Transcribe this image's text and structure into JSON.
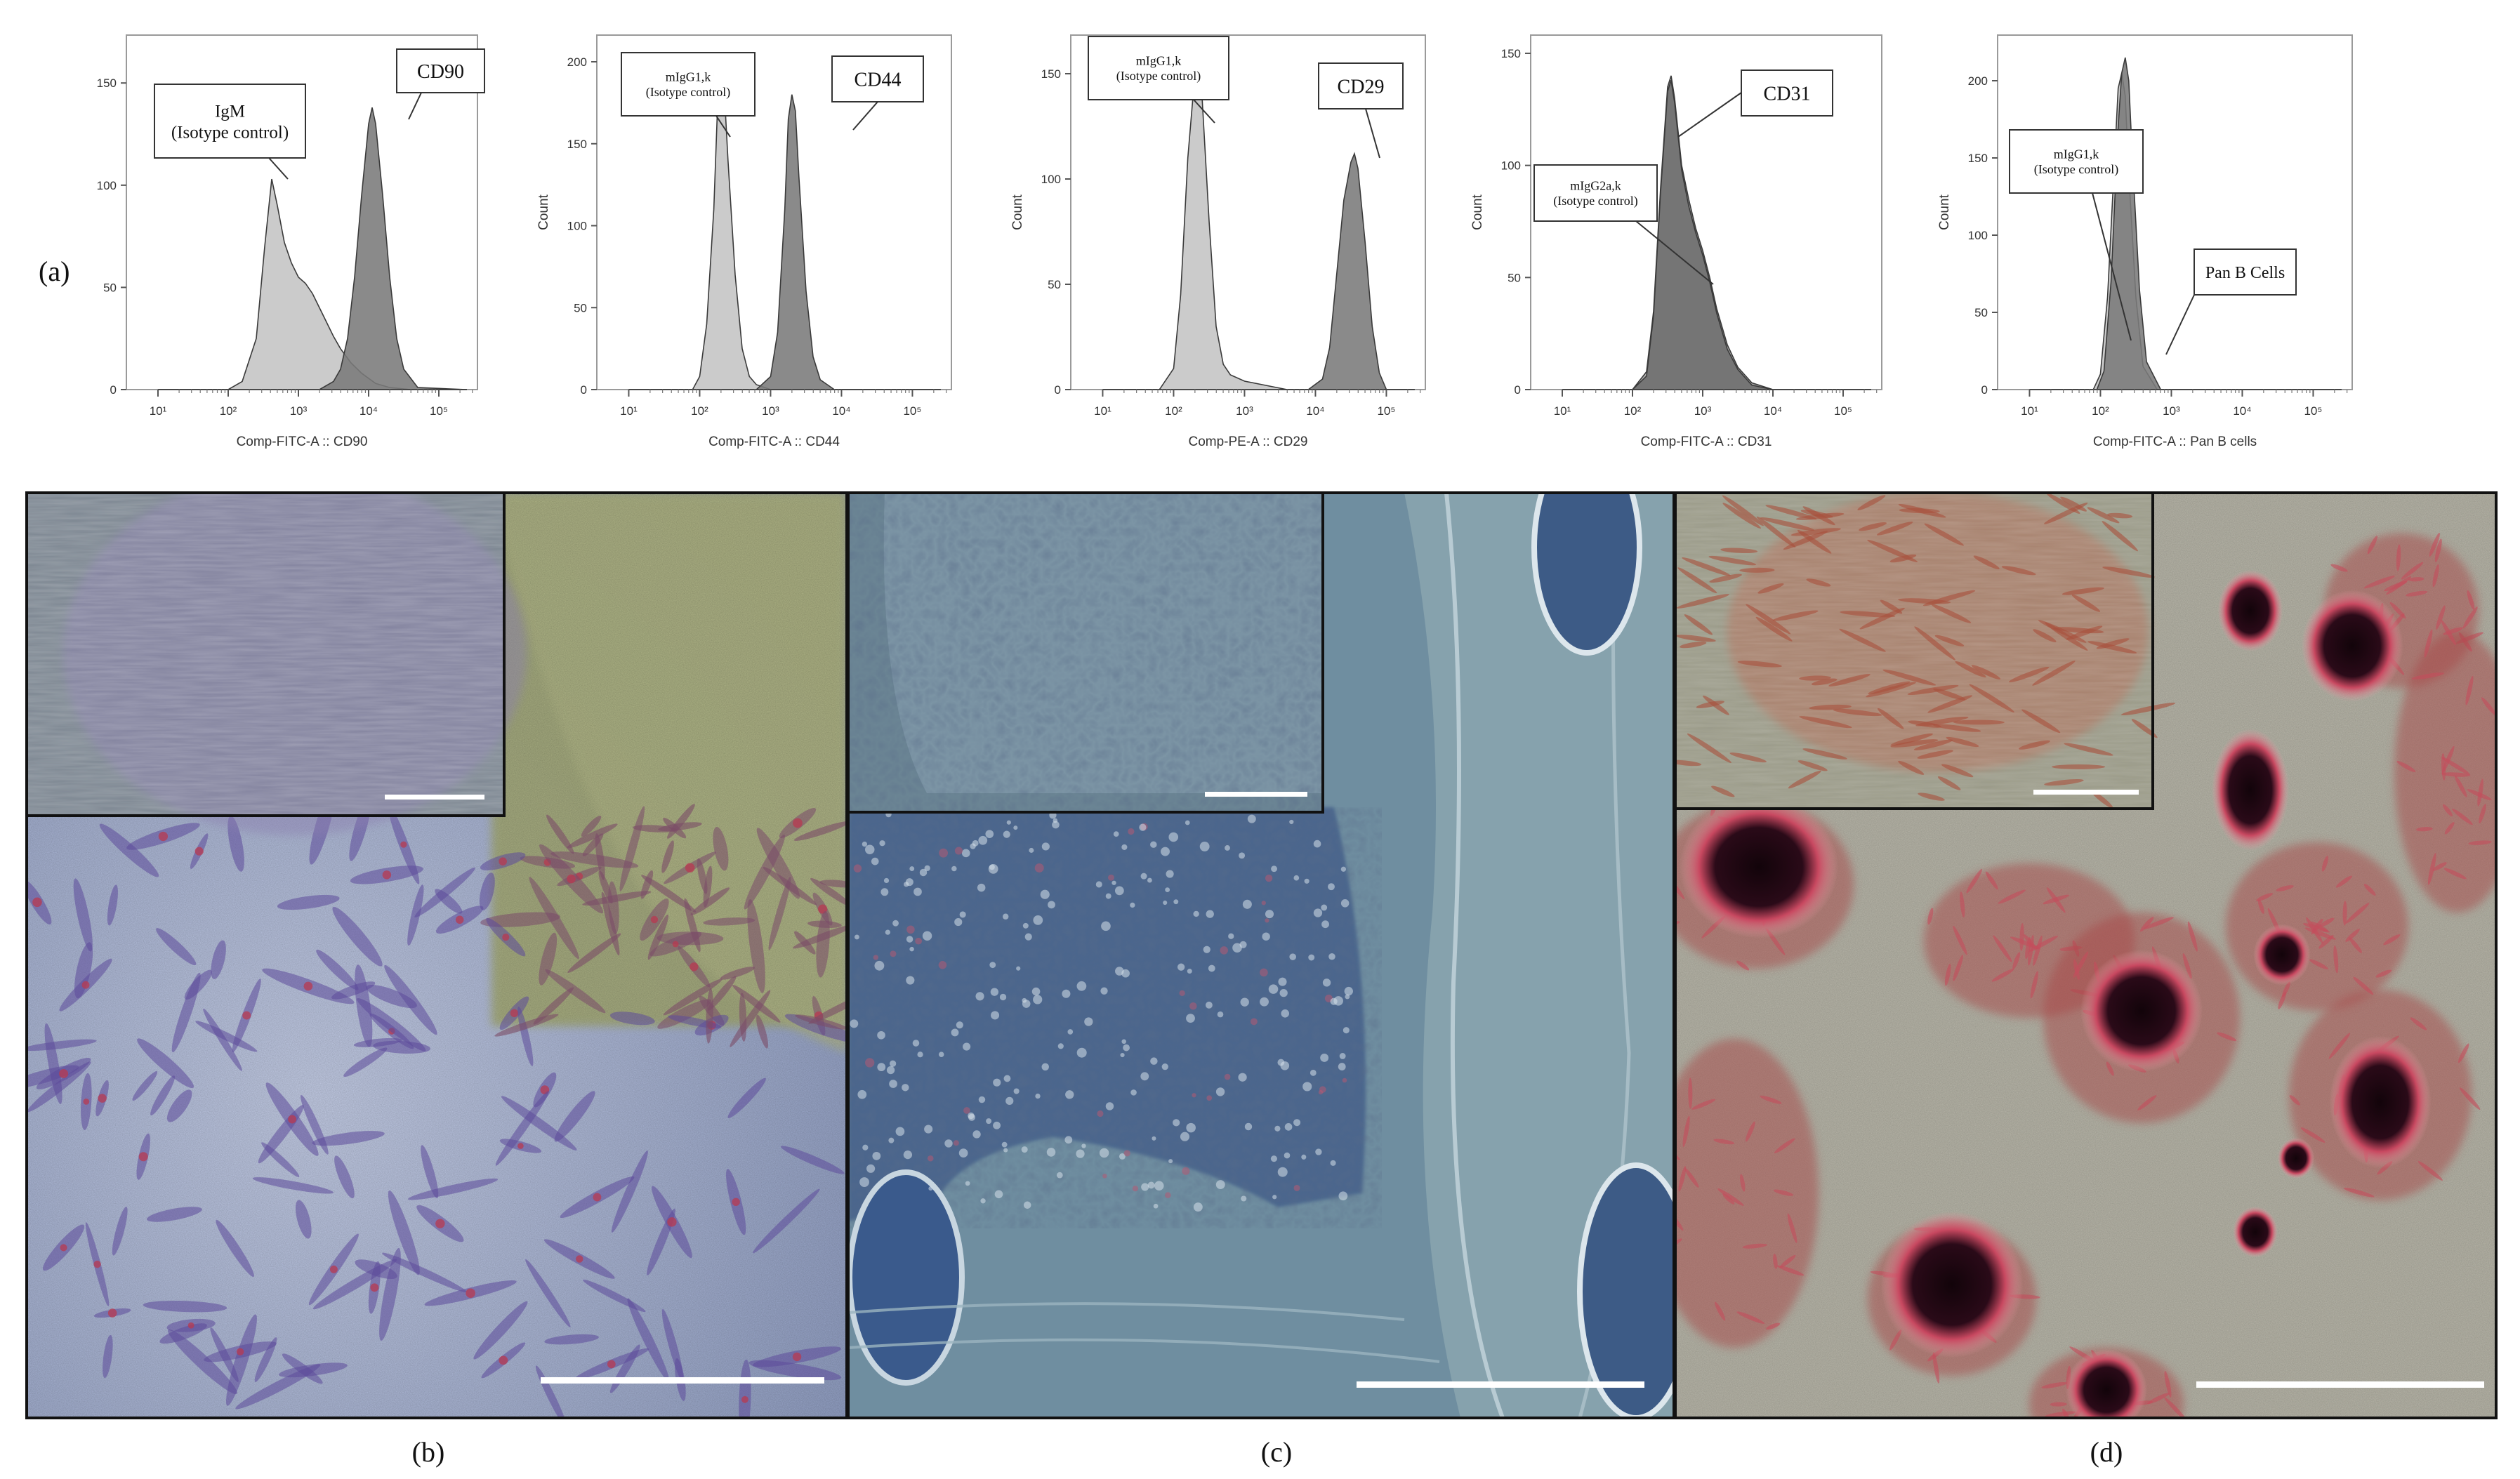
{
  "figure": {
    "panel_a_label": "(a)",
    "panel_b_label": "(b)",
    "panel_c_label": "(c)",
    "panel_d_label": "(d)"
  },
  "histograms": [
    {
      "id": "cd90",
      "xlabel": "Comp-FITC-A :: CD90",
      "ylabel": "",
      "ymax": 170,
      "yticks": [
        0,
        50,
        100,
        150
      ],
      "xticks": [
        "10¹",
        "10²",
        "10³",
        "10⁴",
        "10⁵"
      ],
      "annotations": [
        {
          "lines": [
            "IgM",
            "(Isotype control)"
          ],
          "size": 25
        },
        {
          "lines": [
            "CD90"
          ],
          "size": 28
        }
      ],
      "series": [
        {
          "role": "isotype",
          "color": "#c8c8c8",
          "label": "IgM (Isotype control)",
          "log_x": [
            1.0,
            2.0,
            2.2,
            2.4,
            2.52,
            2.62,
            2.7,
            2.8,
            2.9,
            3.0,
            3.1,
            3.2,
            3.3,
            3.4,
            3.5,
            3.6,
            3.75,
            3.9,
            4.1,
            4.3,
            4.6,
            5.4
          ],
          "counts": [
            0,
            0,
            4,
            25,
            70,
            103,
            90,
            72,
            62,
            55,
            52,
            47,
            40,
            33,
            26,
            20,
            13,
            8,
            3,
            1,
            0,
            0
          ]
        },
        {
          "role": "marker",
          "color": "#7a7a7a",
          "label": "CD90",
          "log_x": [
            1.0,
            3.3,
            3.5,
            3.6,
            3.7,
            3.8,
            3.9,
            4.0,
            4.05,
            4.1,
            4.2,
            4.3,
            4.4,
            4.5,
            4.7,
            5.4
          ],
          "counts": [
            0,
            0,
            4,
            10,
            25,
            55,
            95,
            130,
            138,
            130,
            95,
            55,
            25,
            10,
            1,
            0
          ]
        }
      ]
    },
    {
      "id": "cd44",
      "xlabel": "Comp-FITC-A :: CD44",
      "ylabel": "Count",
      "ymax": 212,
      "yticks": [
        0,
        50,
        100,
        150,
        200
      ],
      "xticks": [
        "10¹",
        "10²",
        "10³",
        "10⁴",
        "10⁵"
      ],
      "annotations": [
        {
          "lines": [
            "mIgG1,k",
            "(Isotype control)"
          ],
          "size": 18
        },
        {
          "lines": [
            "CD44"
          ],
          "size": 28
        }
      ],
      "series": [
        {
          "role": "isotype",
          "color": "#c8c8c8",
          "label": "mIgG1,k (Isotype control)",
          "log_x": [
            1.0,
            1.9,
            2.0,
            2.1,
            2.2,
            2.25,
            2.3,
            2.35,
            2.4,
            2.5,
            2.6,
            2.7,
            2.8,
            3.0,
            5.4
          ],
          "counts": [
            0,
            0,
            8,
            40,
            110,
            170,
            185,
            180,
            140,
            70,
            25,
            8,
            3,
            0,
            0
          ]
        },
        {
          "role": "marker",
          "color": "#7a7a7a",
          "label": "CD44",
          "log_x": [
            1.0,
            2.8,
            3.0,
            3.1,
            3.2,
            3.25,
            3.3,
            3.35,
            3.4,
            3.5,
            3.6,
            3.7,
            3.9,
            5.4
          ],
          "counts": [
            0,
            0,
            8,
            35,
            110,
            165,
            180,
            170,
            130,
            60,
            20,
            6,
            0,
            0
          ]
        }
      ]
    },
    {
      "id": "cd29",
      "xlabel": "Comp-PE-A :: CD29",
      "ylabel": "Count",
      "ymax": 165,
      "yticks": [
        0,
        50,
        100,
        150
      ],
      "xticks": [
        "10¹",
        "10²",
        "10³",
        "10⁴",
        "10⁵"
      ],
      "annotations": [
        {
          "lines": [
            "mIgG1,k",
            "(Isotype control)"
          ],
          "size": 18
        },
        {
          "lines": [
            "CD29"
          ],
          "size": 28
        }
      ],
      "series": [
        {
          "role": "isotype",
          "color": "#c8c8c8",
          "label": "mIgG1,k (Isotype control)",
          "log_x": [
            1.0,
            1.8,
            2.0,
            2.1,
            2.2,
            2.3,
            2.35,
            2.4,
            2.5,
            2.6,
            2.7,
            2.8,
            3.0,
            3.3,
            3.6,
            5.4
          ],
          "counts": [
            0,
            0,
            10,
            45,
            110,
            150,
            155,
            140,
            80,
            30,
            12,
            7,
            4,
            2,
            0,
            0
          ]
        },
        {
          "role": "marker",
          "color": "#7a7a7a",
          "label": "CD29",
          "log_x": [
            1.0,
            3.9,
            4.1,
            4.2,
            4.3,
            4.4,
            4.5,
            4.55,
            4.6,
            4.7,
            4.8,
            4.9,
            5.0,
            5.4
          ],
          "counts": [
            0,
            0,
            5,
            20,
            55,
            90,
            108,
            112,
            105,
            70,
            30,
            8,
            0,
            0
          ]
        }
      ]
    },
    {
      "id": "cd31",
      "xlabel": "Comp-FITC-A :: CD31",
      "ylabel": "Count",
      "ymax": 155,
      "yticks": [
        0,
        50,
        100,
        150
      ],
      "xticks": [
        "10¹",
        "10²",
        "10³",
        "10⁴",
        "10⁵"
      ],
      "annotations": [
        {
          "lines": [
            "CD31"
          ],
          "size": 28
        },
        {
          "lines": [
            "mIgG2a,k",
            "(Isotype control)"
          ],
          "size": 18
        }
      ],
      "series": [
        {
          "role": "isotype",
          "color": "#a9a9a9",
          "label": "mIgG2a,k (Isotype control)",
          "log_x": [
            1.0,
            2.0,
            2.2,
            2.3,
            2.4,
            2.5,
            2.55,
            2.6,
            2.7,
            2.8,
            2.9,
            3.0,
            3.1,
            3.2,
            3.35,
            3.5,
            3.7,
            4.0,
            5.4
          ],
          "counts": [
            0,
            0,
            8,
            35,
            90,
            135,
            140,
            130,
            100,
            85,
            72,
            62,
            50,
            36,
            20,
            10,
            3,
            0,
            0
          ]
        },
        {
          "role": "marker",
          "color": "#6d6d6d",
          "label": "CD31",
          "log_x": [
            1.0,
            2.0,
            2.2,
            2.3,
            2.4,
            2.5,
            2.55,
            2.6,
            2.7,
            2.8,
            2.9,
            3.0,
            3.1,
            3.2,
            3.35,
            3.5,
            3.7,
            4.0,
            5.4
          ],
          "counts": [
            0,
            0,
            6,
            33,
            88,
            133,
            138,
            128,
            98,
            82,
            70,
            60,
            48,
            34,
            18,
            9,
            2,
            0,
            0
          ]
        }
      ]
    },
    {
      "id": "panb",
      "xlabel": "Comp-FITC-A :: Pan B cells",
      "ylabel": "Count",
      "ymax": 225,
      "yticks": [
        0,
        50,
        100,
        150,
        200
      ],
      "xticks": [
        "10¹",
        "10²",
        "10³",
        "10⁴",
        "10⁵"
      ],
      "annotations": [
        {
          "lines": [
            "mIgG1,k",
            "(Isotype control)"
          ],
          "size": 18
        },
        {
          "lines": [
            "Pan B Cells"
          ],
          "size": 24
        }
      ],
      "series": [
        {
          "role": "isotype",
          "color": "#c8c8c8",
          "label": "mIgG1,k (Isotype control)",
          "log_x": [
            1.0,
            1.9,
            2.0,
            2.1,
            2.2,
            2.25,
            2.3,
            2.35,
            2.4,
            2.5,
            2.6,
            2.8,
            5.4
          ],
          "counts": [
            0,
            0,
            10,
            60,
            150,
            195,
            205,
            190,
            140,
            60,
            15,
            0,
            0
          ]
        },
        {
          "role": "marker",
          "color": "#7a7a7a",
          "label": "Pan B Cells",
          "log_x": [
            1.0,
            1.95,
            2.05,
            2.15,
            2.25,
            2.3,
            2.35,
            2.4,
            2.45,
            2.55,
            2.65,
            2.85,
            5.4
          ],
          "counts": [
            0,
            0,
            12,
            70,
            170,
            205,
            215,
            200,
            150,
            65,
            18,
            0,
            0
          ]
        }
      ]
    }
  ],
  "micrographs": {
    "b": {
      "base": "#a7b4d2",
      "right_tone": "#a6ab72",
      "inset_tone": "#7b8590",
      "cell_color": "#5c4a9a",
      "stain_color": "#b83a50"
    },
    "c": {
      "base": "#6f8ea0",
      "right_tone": "#88a4ae",
      "inset_tone": "#6b8594",
      "colony_color": "#2f4f8a",
      "stain_color": "#c04060"
    },
    "d": {
      "base": "#b7b5a8",
      "nodule_color": "#1a0a14",
      "stain_color": "#c03048",
      "inset_tone": "#9a9a88"
    }
  }
}
